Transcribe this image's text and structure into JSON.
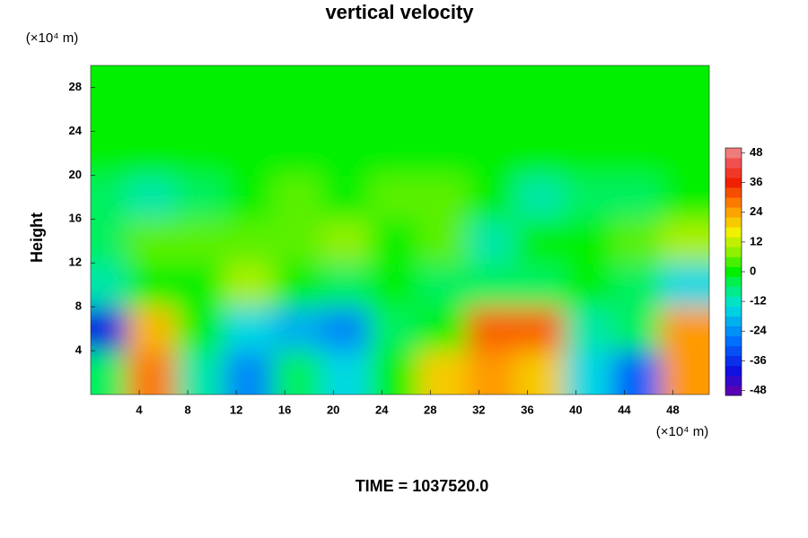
{
  "chart_data": {
    "type": "contour",
    "title": "vertical velocity",
    "y_label": "Height",
    "y_unit": "(×10⁴ m)",
    "x_unit": "(×10⁴ m)",
    "footer": "TIME = 1037520.0",
    "x": [
      1,
      5,
      9,
      13,
      17,
      21,
      25,
      29,
      33,
      37,
      41,
      45,
      49
    ],
    "y": [
      2,
      6,
      10,
      14,
      18,
      22,
      26,
      30
    ],
    "z": [
      [
        -5,
        28,
        -10,
        -25,
        -5,
        -15,
        0,
        20,
        25,
        20,
        -15,
        -30,
        25
      ],
      [
        -40,
        22,
        0,
        -15,
        -20,
        -25,
        -5,
        0,
        30,
        30,
        -10,
        -5,
        25
      ],
      [
        -10,
        0,
        0,
        10,
        0,
        -5,
        0,
        -5,
        -5,
        -5,
        0,
        -5,
        -15
      ],
      [
        -5,
        5,
        5,
        5,
        5,
        8,
        0,
        5,
        -10,
        0,
        0,
        5,
        10
      ],
      [
        -5,
        -10,
        -5,
        0,
        5,
        0,
        5,
        5,
        0,
        -10,
        -5,
        -5,
        0
      ],
      [
        0,
        0,
        0,
        0,
        0,
        0,
        0,
        0,
        0,
        0,
        0,
        0,
        0
      ],
      [
        0,
        0,
        0,
        0,
        0,
        0,
        0,
        0,
        0,
        0,
        0,
        0,
        0
      ],
      [
        0,
        0,
        0,
        0,
        0,
        0,
        0,
        0,
        0,
        0,
        0,
        0,
        0
      ]
    ],
    "xlim": [
      0,
      51
    ],
    "ylim": [
      0,
      30
    ],
    "xticks": [
      4,
      8,
      12,
      16,
      20,
      24,
      28,
      32,
      36,
      40,
      44,
      48
    ],
    "yticks": [
      4,
      8,
      12,
      16,
      20,
      24,
      28
    ],
    "clim": [
      -50,
      50
    ],
    "cticks": [
      -48,
      -36,
      -24,
      -12,
      0,
      12,
      24,
      36,
      48
    ],
    "colorscale": [
      [
        -50,
        "#6a00a8"
      ],
      [
        -40,
        "#1010e0"
      ],
      [
        -28,
        "#0070ff"
      ],
      [
        -14,
        "#00e0e0"
      ],
      [
        -5,
        "#00f060"
      ],
      [
        0,
        "#00f000"
      ],
      [
        8,
        "#90f000"
      ],
      [
        16,
        "#f0f000"
      ],
      [
        26,
        "#ff9000"
      ],
      [
        36,
        "#f02000"
      ],
      [
        44,
        "#f05050"
      ],
      [
        50,
        "#f09090"
      ]
    ]
  }
}
